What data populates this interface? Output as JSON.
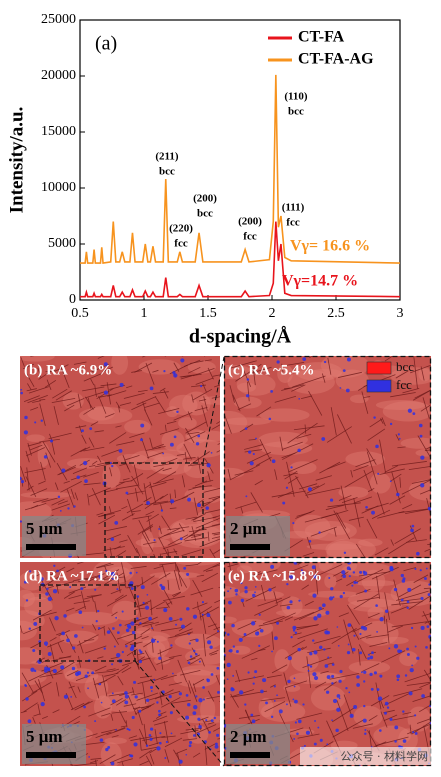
{
  "chart_data": {
    "type": "line",
    "x_label": "d-spacing/Å",
    "y_label": "Intensity/a.u.",
    "panel_label": "(a)",
    "x": [
      0.5,
      0.54,
      0.55,
      0.56,
      0.6,
      0.61,
      0.62,
      0.66,
      0.67,
      0.68,
      0.74,
      0.76,
      0.78,
      0.81,
      0.83,
      0.85,
      0.89,
      0.91,
      0.93,
      0.99,
      1.01,
      1.03,
      1.05,
      1.07,
      1.09,
      1.15,
      1.17,
      1.19,
      1.26,
      1.28,
      1.3,
      1.4,
      1.43,
      1.46,
      1.76,
      1.79,
      1.82,
      1.98,
      2.01,
      2.03,
      2.05,
      2.07,
      2.1,
      2.15,
      3.0
    ],
    "series": [
      {
        "name": "CT-FA",
        "color": "#e8141c",
        "values": [
          300,
          300,
          700,
          300,
          300,
          600,
          300,
          300,
          500,
          300,
          300,
          1300,
          300,
          300,
          700,
          300,
          300,
          900,
          300,
          300,
          800,
          300,
          300,
          700,
          300,
          300,
          2000,
          300,
          300,
          500,
          300,
          300,
          1300,
          300,
          300,
          800,
          300,
          400,
          1500,
          7000,
          3500,
          5000,
          600,
          400,
          300
        ]
      },
      {
        "name": "CT-FA-AG",
        "color": "#f7931e",
        "values": [
          3300,
          3300,
          4300,
          3300,
          3300,
          4500,
          3300,
          3300,
          4700,
          3300,
          3400,
          7000,
          3400,
          3400,
          4300,
          3400,
          3400,
          6000,
          3400,
          3400,
          5000,
          3400,
          3400,
          4800,
          3400,
          3400,
          10800,
          3400,
          3400,
          4300,
          3400,
          3400,
          6000,
          3400,
          3400,
          4500,
          3400,
          3600,
          7000,
          20100,
          6500,
          7500,
          3800,
          3500,
          3300
        ]
      }
    ],
    "xlim": [
      0.5,
      3.0
    ],
    "xticks": [
      0.5,
      1.0,
      1.5,
      2.0,
      2.5,
      3.0
    ],
    "ylim": [
      0,
      25000
    ],
    "yticks": [
      0,
      5000,
      10000,
      15000,
      20000,
      25000
    ],
    "peak_labels": [
      [
        "(211)",
        "bcc"
      ],
      [
        "(220)",
        "fcc"
      ],
      [
        "(200)",
        "bcc"
      ],
      [
        "(200)",
        "fcc"
      ],
      [
        "(110)",
        "bcc"
      ],
      [
        "(111)",
        "fcc"
      ]
    ],
    "fraction_labels": [
      {
        "text": "Vγ= 16.6 %",
        "color": "#f7931e"
      },
      {
        "text": "Vγ=14.7 %",
        "color": "#e8141c"
      }
    ]
  },
  "panels": [
    {
      "label": "(b) RA ~6.9%",
      "scale": "5 μm"
    },
    {
      "label": "(c) RA ~5.4%",
      "scale": "2 μm"
    },
    {
      "label": "(d) RA ~17.1%",
      "scale": "5 μm"
    },
    {
      "label": "(e) RA ~15.8%",
      "scale": "2 μm"
    }
  ],
  "phase_legend": [
    {
      "name": "bcc",
      "color": "#ff1a1a"
    },
    {
      "name": "fcc",
      "color": "#3030e0"
    }
  ],
  "watermark": "公众号 · 材料学网"
}
